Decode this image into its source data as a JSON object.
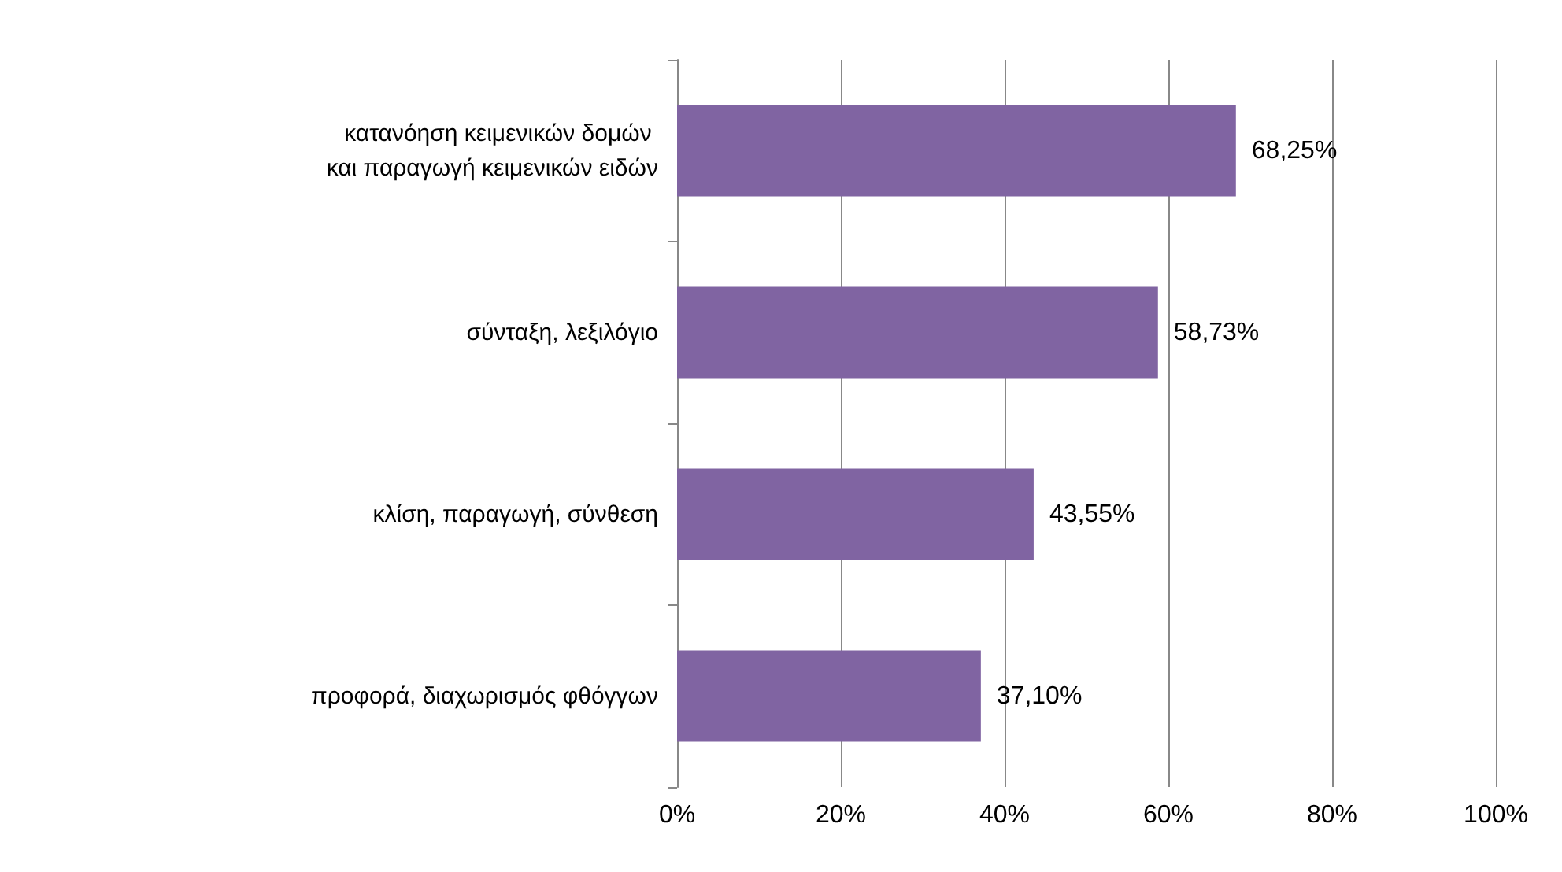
{
  "chart_data": {
    "type": "bar",
    "orientation": "horizontal",
    "categories": [
      "κατανόηση κειμενικών δομών και παραγωγή κειμενικών ειδών",
      "σύνταξη, λεξιλόγιο",
      "κλίση, παραγωγή, σύνθεση",
      "προφορά, διαχωρισμός φθόγγων"
    ],
    "values": [
      68.25,
      58.73,
      43.55,
      37.1
    ],
    "value_labels": [
      "68,25%",
      "58,73%",
      "43,55%",
      "37,10%"
    ],
    "color": "#8064a2",
    "xlim": [
      0,
      100
    ],
    "xticks": [
      {
        "value": 0,
        "label": "0%"
      },
      {
        "value": 20,
        "label": "20%"
      },
      {
        "value": 40,
        "label": "40%"
      },
      {
        "value": 60,
        "label": "60%"
      },
      {
        "value": 80,
        "label": "80%"
      },
      {
        "value": 100,
        "label": "100%"
      }
    ],
    "grid": "x"
  }
}
